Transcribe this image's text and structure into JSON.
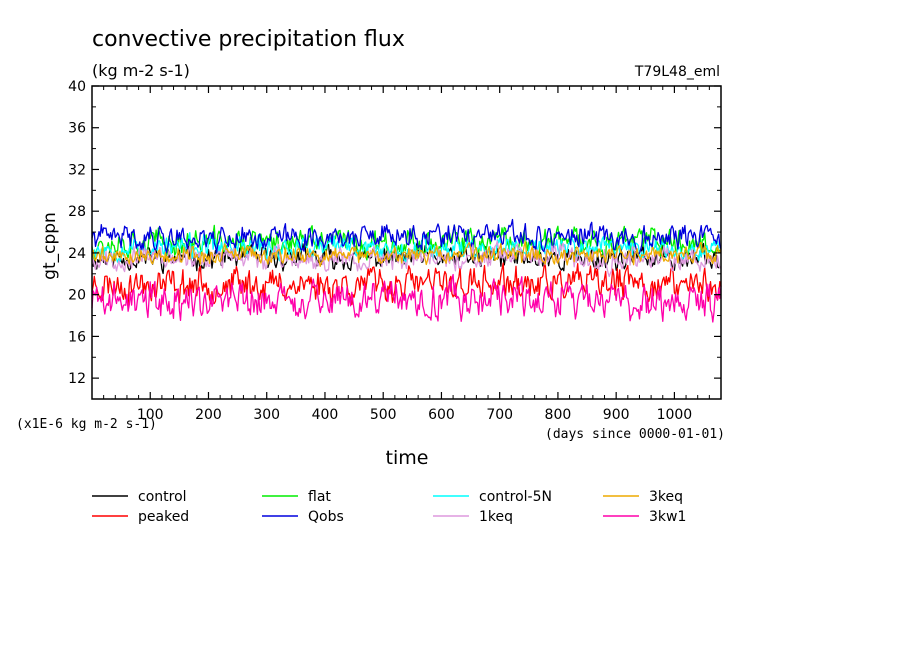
{
  "chart_data": {
    "type": "line",
    "title": "convective precipitation flux",
    "units": "(kg m-2 s-1)",
    "run_label": "T79L48_eml",
    "ylabel": "gt_cppn",
    "xlabel": "time",
    "scale_note": "(x1E-6 kg m-2 s-1)",
    "x_unit_note": "(days since 0000-01-01)",
    "xlim": [
      0,
      1080
    ],
    "ylim": [
      10,
      40
    ],
    "x_ticks": [
      100,
      200,
      300,
      400,
      500,
      600,
      700,
      800,
      900,
      1000
    ],
    "y_ticks": [
      12,
      16,
      20,
      24,
      28,
      32,
      36,
      40
    ],
    "series": [
      {
        "name": "control",
        "color": "#000000",
        "mean": 23.5,
        "amp": 1.5,
        "seed": 11
      },
      {
        "name": "peaked",
        "color": "#ff0000",
        "mean": 21.0,
        "amp": 2.2,
        "seed": 23
      },
      {
        "name": "flat",
        "color": "#00ee00",
        "mean": 25.0,
        "amp": 1.8,
        "seed": 37
      },
      {
        "name": "Qobs",
        "color": "#0000dd",
        "mean": 25.5,
        "amp": 1.6,
        "seed": 41
      },
      {
        "name": "control-5N",
        "color": "#00ffff",
        "mean": 24.5,
        "amp": 1.5,
        "seed": 53
      },
      {
        "name": "1keq",
        "color": "#dd99dd",
        "mean": 23.5,
        "amp": 1.5,
        "seed": 67
      },
      {
        "name": "3keq",
        "color": "#eeaa00",
        "mean": 23.8,
        "amp": 1.2,
        "seed": 79
      },
      {
        "name": "3kw1",
        "color": "#ff00aa",
        "mean": 19.5,
        "amp": 2.5,
        "seed": 89
      }
    ]
  }
}
